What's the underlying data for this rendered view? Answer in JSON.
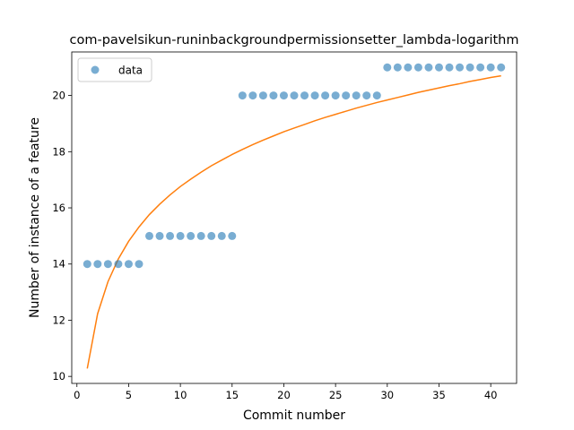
{
  "chart_data": {
    "type": "scatter",
    "title": "com-pavelsikun-runinbackgroundpermissionsetter_lambda-logarithm",
    "xlabel": "Commit number",
    "ylabel": "Number of instance of a feature",
    "xlim": [
      -0.5,
      42.5
    ],
    "ylim": [
      9.75,
      21.55
    ],
    "xticks": [
      0,
      5,
      10,
      15,
      20,
      25,
      30,
      35,
      40
    ],
    "yticks": [
      10,
      12,
      14,
      16,
      18,
      20
    ],
    "grid": false,
    "legend": {
      "position": "top-left",
      "entries": [
        "data"
      ]
    },
    "colors": {
      "points": "#1f77b4",
      "fit": "#ff7f0e"
    },
    "series": [
      {
        "name": "data",
        "kind": "scatter",
        "x": [
          1,
          2,
          3,
          4,
          5,
          6,
          7,
          8,
          9,
          10,
          11,
          12,
          13,
          14,
          15,
          16,
          17,
          18,
          19,
          20,
          21,
          22,
          23,
          24,
          25,
          26,
          27,
          28,
          29,
          30,
          31,
          32,
          33,
          34,
          35,
          36,
          37,
          38,
          39,
          40,
          41
        ],
        "y": [
          14,
          14,
          14,
          14,
          14,
          14,
          15,
          15,
          15,
          15,
          15,
          15,
          15,
          15,
          15,
          20,
          20,
          20,
          20,
          20,
          20,
          20,
          20,
          20,
          20,
          20,
          20,
          20,
          20,
          21,
          21,
          21,
          21,
          21,
          21,
          21,
          21,
          21,
          21,
          21,
          21
        ]
      },
      {
        "kind": "line",
        "x": [
          1,
          2,
          3,
          4,
          5,
          6,
          7,
          8,
          9,
          10,
          11,
          12,
          13,
          14,
          15,
          16,
          17,
          18,
          19,
          20,
          21,
          22,
          23,
          24,
          25,
          26,
          27,
          28,
          29,
          30,
          31,
          32,
          33,
          34,
          35,
          36,
          37,
          38,
          39,
          40,
          41
        ],
        "y": [
          10.28,
          12.23,
          13.37,
          14.18,
          14.81,
          15.32,
          15.76,
          16.13,
          16.46,
          16.76,
          17.02,
          17.27,
          17.5,
          17.7,
          17.9,
          18.08,
          18.25,
          18.41,
          18.56,
          18.71,
          18.84,
          18.97,
          19.1,
          19.22,
          19.33,
          19.44,
          19.55,
          19.65,
          19.75,
          19.84,
          19.93,
          20.02,
          20.11,
          20.19,
          20.27,
          20.35,
          20.42,
          20.5,
          20.57,
          20.64,
          20.7
        ]
      }
    ]
  }
}
